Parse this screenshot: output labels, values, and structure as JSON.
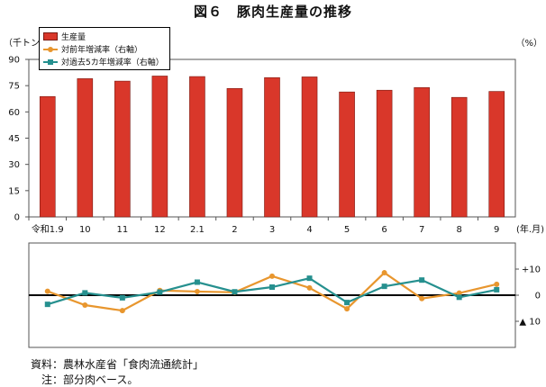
{
  "title": "図６　豚肉生産量の推移",
  "source": "資料：農林水産省「食肉流通統計」",
  "note": "注：部分肉ベース。",
  "chart_data": [
    {
      "type": "bar",
      "y_unit": "（千トン）",
      "x_unit": "(年.月)",
      "categories": [
        "令和1.9",
        "10",
        "11",
        "12",
        "2.1",
        "2",
        "3",
        "4",
        "5",
        "6",
        "7",
        "8",
        "9"
      ],
      "series": [
        {
          "name": "生産量",
          "color": "#d9372a",
          "values": [
            68.8,
            79.0,
            77.6,
            80.5,
            80.2,
            73.4,
            79.6,
            80.0,
            71.4,
            72.4,
            73.9,
            68.3,
            71.7
          ]
        }
      ],
      "ylim": [
        0,
        90
      ],
      "yticks": [
        0,
        15,
        30,
        45,
        60,
        75,
        90
      ],
      "right_unit": "（%）",
      "grid": false,
      "legend": "top-left"
    },
    {
      "type": "line",
      "categories": [
        "令和1.9",
        "10",
        "11",
        "12",
        "2.1",
        "2",
        "3",
        "4",
        "5",
        "6",
        "7",
        "8",
        "9"
      ],
      "series": [
        {
          "name": "対前年増減率（右軸）",
          "color": "#e8962e",
          "marker": "circle",
          "values": [
            1.5,
            -3.8,
            -5.9,
            1.8,
            1.4,
            1.1,
            7.3,
            2.8,
            -5.2,
            8.6,
            -1.3,
            0.8,
            4.2
          ]
        },
        {
          "name": "対過去5カ年増減率（右軸）",
          "color": "#26908f",
          "marker": "square",
          "values": [
            -3.5,
            0.9,
            -1.0,
            1.2,
            5.0,
            1.3,
            3.1,
            6.5,
            -2.8,
            3.4,
            5.8,
            -0.8,
            2.1
          ]
        }
      ],
      "ylim": [
        -20,
        20
      ],
      "yticks": [
        {
          "value": 10,
          "label": "+10"
        },
        {
          "value": 0,
          "label": "0"
        },
        {
          "value": -10,
          "label": "▲ 10"
        }
      ],
      "zero_line": true,
      "grid": false
    }
  ]
}
